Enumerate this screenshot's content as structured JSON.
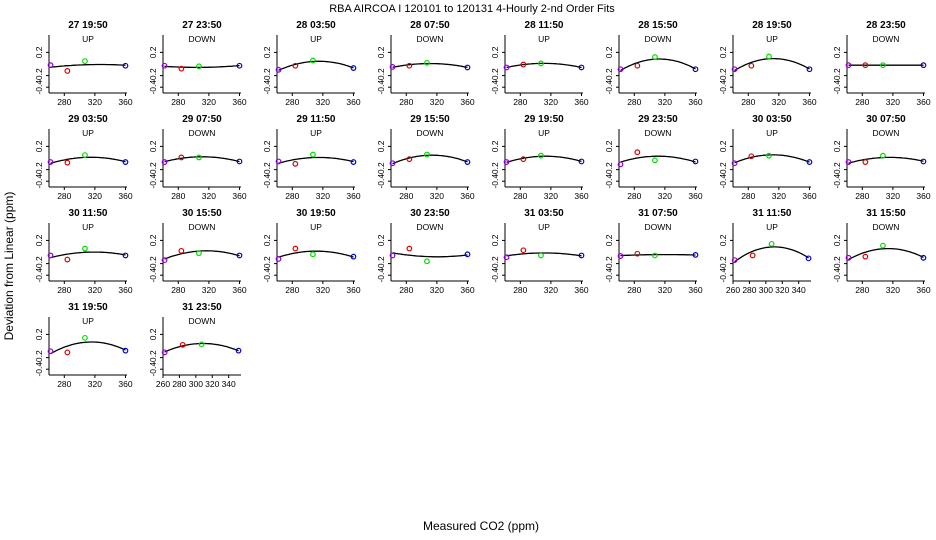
{
  "chart_data": {
    "type": "scatter",
    "title": "RBA   AIRCOA I   120101 to 120131   4-Hourly 2-nd Order Fits",
    "xlabel": "Measured CO2 (ppm)",
    "ylabel": "Deviation from Linear (ppm)",
    "y_ticks": [
      "-0.4",
      "-0.2",
      "0.2"
    ],
    "ylim": [
      -0.5,
      0.5
    ],
    "grid": false,
    "colors": {
      "point_1": "#8800cc",
      "point_2": "#dd0000",
      "point_3": "#00dd00",
      "point_4": "#0000cc",
      "curve": "#000000"
    },
    "panels": [
      {
        "label": "27 19:50",
        "dir": "UP",
        "xlim": [
          260,
          362
        ],
        "xticks": [
          280,
          320,
          360
        ],
        "x": [
          262,
          284,
          307,
          360
        ],
        "y": [
          -0.02,
          -0.12,
          0.05,
          -0.03
        ]
      },
      {
        "label": "27 23:50",
        "dir": "DOWN",
        "xlim": [
          260,
          362
        ],
        "xticks": [
          280,
          320,
          360
        ],
        "x": [
          262,
          284,
          307,
          360
        ],
        "y": [
          -0.03,
          -0.08,
          -0.04,
          -0.03
        ]
      },
      {
        "label": "28 03:50",
        "dir": "UP",
        "xlim": [
          260,
          362
        ],
        "xticks": [
          280,
          320,
          360
        ],
        "x": [
          262,
          284,
          307,
          360
        ],
        "y": [
          -0.1,
          -0.03,
          0.06,
          -0.07
        ]
      },
      {
        "label": "28 07:50",
        "dir": "DOWN",
        "xlim": [
          260,
          362
        ],
        "xticks": [
          280,
          320,
          360
        ],
        "x": [
          262,
          284,
          307,
          360
        ],
        "y": [
          -0.05,
          -0.03,
          0.02,
          -0.06
        ]
      },
      {
        "label": "28 11:50",
        "dir": "UP",
        "xlim": [
          260,
          362
        ],
        "xticks": [
          280,
          320,
          360
        ],
        "x": [
          262,
          284,
          307,
          360
        ],
        "y": [
          -0.06,
          -0.01,
          0.01,
          -0.06
        ]
      },
      {
        "label": "28 15:50",
        "dir": "DOWN",
        "xlim": [
          260,
          362
        ],
        "xticks": [
          280,
          320,
          360
        ],
        "x": [
          262,
          284,
          307,
          360
        ],
        "y": [
          -0.09,
          -0.03,
          0.12,
          -0.09
        ]
      },
      {
        "label": "28 19:50",
        "dir": "UP",
        "xlim": [
          260,
          362
        ],
        "xticks": [
          280,
          320,
          360
        ],
        "x": [
          262,
          284,
          307,
          360
        ],
        "y": [
          -0.09,
          -0.03,
          0.13,
          -0.09
        ]
      },
      {
        "label": "28 23:50",
        "dir": "DOWN",
        "xlim": [
          260,
          362
        ],
        "xticks": [
          280,
          320,
          360
        ],
        "x": [
          262,
          284,
          307,
          360
        ],
        "y": [
          -0.02,
          -0.02,
          -0.02,
          -0.02
        ]
      },
      {
        "label": "29 03:50",
        "dir": "UP",
        "xlim": [
          260,
          362
        ],
        "xticks": [
          280,
          320,
          360
        ],
        "x": [
          262,
          284,
          307,
          360
        ],
        "y": [
          -0.07,
          -0.08,
          0.05,
          -0.07
        ]
      },
      {
        "label": "29 07:50",
        "dir": "DOWN",
        "xlim": [
          260,
          362
        ],
        "xticks": [
          280,
          320,
          360
        ],
        "x": [
          262,
          284,
          307,
          360
        ],
        "y": [
          -0.07,
          0.01,
          0.01,
          -0.06
        ]
      },
      {
        "label": "29 11:50",
        "dir": "UP",
        "xlim": [
          260,
          362
        ],
        "xticks": [
          280,
          320,
          360
        ],
        "x": [
          262,
          284,
          307,
          360
        ],
        "y": [
          -0.06,
          -0.1,
          0.06,
          -0.07
        ]
      },
      {
        "label": "29 15:50",
        "dir": "DOWN",
        "xlim": [
          260,
          362
        ],
        "xticks": [
          280,
          320,
          360
        ],
        "x": [
          262,
          284,
          307,
          360
        ],
        "y": [
          -0.09,
          -0.02,
          0.06,
          -0.07
        ]
      },
      {
        "label": "29 19:50",
        "dir": "UP",
        "xlim": [
          260,
          362
        ],
        "xticks": [
          280,
          320,
          360
        ],
        "x": [
          262,
          284,
          307,
          360
        ],
        "y": [
          -0.07,
          -0.02,
          0.04,
          -0.06
        ]
      },
      {
        "label": "29 23:50",
        "dir": "DOWN",
        "xlim": [
          260,
          362
        ],
        "xticks": [
          280,
          320,
          360
        ],
        "x": [
          262,
          284,
          307,
          360
        ],
        "y": [
          -0.11,
          0.1,
          -0.04,
          -0.06
        ]
      },
      {
        "label": "30 03:50",
        "dir": "UP",
        "xlim": [
          260,
          362
        ],
        "xticks": [
          280,
          320,
          360
        ],
        "x": [
          262,
          284,
          307,
          360
        ],
        "y": [
          -0.09,
          0.03,
          0.04,
          -0.07
        ]
      },
      {
        "label": "30 07:50",
        "dir": "DOWN",
        "xlim": [
          260,
          362
        ],
        "xticks": [
          280,
          320,
          360
        ],
        "x": [
          262,
          284,
          307,
          360
        ],
        "y": [
          -0.07,
          -0.07,
          0.04,
          -0.06
        ]
      },
      {
        "label": "30 11:50",
        "dir": "UP",
        "xlim": [
          260,
          362
        ],
        "xticks": [
          280,
          320,
          360
        ],
        "x": [
          262,
          284,
          307,
          360
        ],
        "y": [
          -0.06,
          -0.13,
          0.06,
          -0.06
        ]
      },
      {
        "label": "30 15:50",
        "dir": "DOWN",
        "xlim": [
          260,
          362
        ],
        "xticks": [
          280,
          320,
          360
        ],
        "x": [
          262,
          284,
          307,
          360
        ],
        "y": [
          -0.14,
          0.02,
          -0.02,
          -0.06
        ]
      },
      {
        "label": "30 19:50",
        "dir": "UP",
        "xlim": [
          260,
          362
        ],
        "xticks": [
          280,
          320,
          360
        ],
        "x": [
          262,
          284,
          307,
          360
        ],
        "y": [
          -0.12,
          0.06,
          -0.04,
          -0.08
        ]
      },
      {
        "label": "30 23:50",
        "dir": "DOWN",
        "xlim": [
          260,
          362
        ],
        "xticks": [
          280,
          320,
          360
        ],
        "x": [
          262,
          284,
          307,
          360
        ],
        "y": [
          -0.06,
          0.06,
          -0.16,
          -0.04
        ]
      },
      {
        "label": "31 03:50",
        "dir": "UP",
        "xlim": [
          260,
          362
        ],
        "xticks": [
          280,
          320,
          360
        ],
        "x": [
          262,
          284,
          307,
          360
        ],
        "y": [
          -0.09,
          0.03,
          -0.06,
          -0.06
        ]
      },
      {
        "label": "31 07:50",
        "dir": "DOWN",
        "xlim": [
          260,
          362
        ],
        "xticks": [
          280,
          320,
          360
        ],
        "x": [
          262,
          284,
          307,
          360
        ],
        "y": [
          -0.07,
          -0.03,
          -0.06,
          -0.05
        ]
      },
      {
        "label": "31 11:50",
        "dir": "UP",
        "xlim": [
          260,
          355
        ],
        "xticks": [
          260,
          280,
          300,
          320,
          340
        ],
        "x": [
          262,
          284,
          307,
          352
        ],
        "y": [
          -0.14,
          -0.06,
          0.14,
          -0.11
        ]
      },
      {
        "label": "31 15:50",
        "dir": "DOWN",
        "xlim": [
          260,
          362
        ],
        "xticks": [
          280,
          320,
          360
        ],
        "x": [
          262,
          284,
          307,
          360
        ],
        "y": [
          -0.1,
          -0.08,
          0.11,
          -0.1
        ]
      },
      {
        "label": "31 19:50",
        "dir": "UP",
        "xlim": [
          260,
          362
        ],
        "xticks": [
          280,
          320,
          360
        ],
        "x": [
          262,
          284,
          307,
          360
        ],
        "y": [
          -0.09,
          -0.11,
          0.14,
          -0.08
        ]
      },
      {
        "label": "31 23:50",
        "dir": "DOWN",
        "xlim": [
          260,
          355
        ],
        "xticks": [
          260,
          280,
          300,
          320,
          340
        ],
        "x": [
          262,
          284,
          307,
          352
        ],
        "y": [
          -0.11,
          0.02,
          0.03,
          -0.08
        ]
      }
    ]
  }
}
